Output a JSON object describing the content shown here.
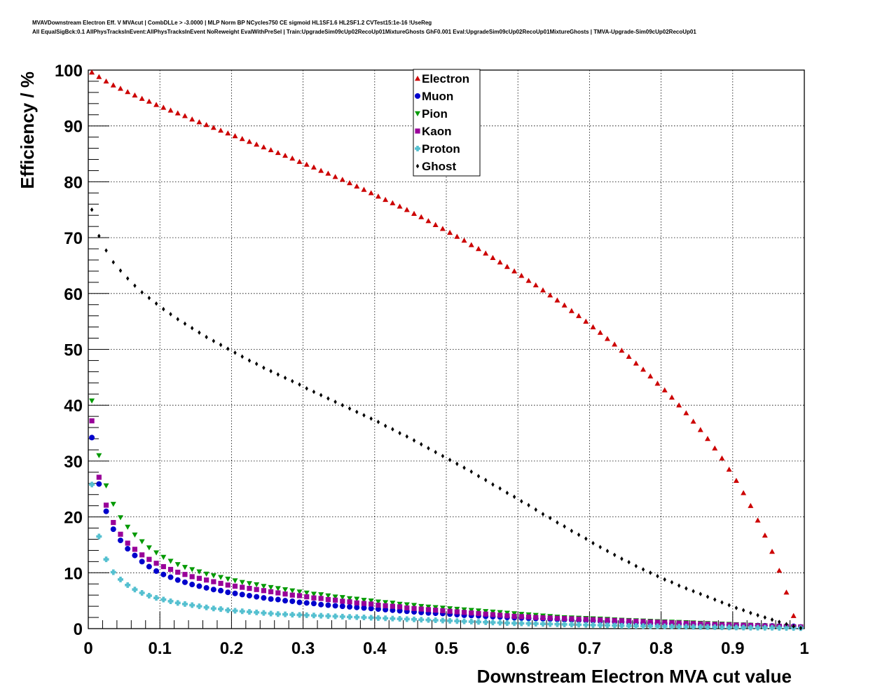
{
  "header": {
    "line1": "MVAVDownstream Electron Eff. V MVAcut | CombDLLe > -3.0000 | MLP Norm BP NCycles750 CE sigmoid HL1SF1.6 HL2SF1.2 CVTest15:1e-16 !UseReg",
    "line2": "All EqualSigBck:0.1 AllPhysTracksInEvent:AllPhysTracksInEvent NoReweight EvalWithPreSel | Train:UpgradeSim09cUp02RecoUp01MixtureGhosts GhF0.001 Eval:UpgradeSim09cUp02RecoUp01MixtureGhosts | TMVA-Upgrade-Sim09cUp02RecoUp01"
  },
  "chart_data": {
    "type": "scatter",
    "xlabel": "Downstream Electron MVA cut value",
    "ylabel": "Efficiency / %",
    "xlim": [
      0,
      1
    ],
    "ylim": [
      0,
      100
    ],
    "xticks": [
      0,
      0.1,
      0.2,
      0.3,
      0.4,
      0.5,
      0.6,
      0.7,
      0.8,
      0.9,
      1
    ],
    "xtick_labels": [
      "0",
      "0.1",
      "0.2",
      "0.3",
      "0.4",
      "0.5",
      "0.6",
      "0.7",
      "0.8",
      "0.9",
      "1"
    ],
    "yticks": [
      0,
      10,
      20,
      30,
      40,
      50,
      60,
      70,
      80,
      90,
      100
    ],
    "ytick_labels": [
      "0",
      "10",
      "20",
      "30",
      "40",
      "50",
      "60",
      "70",
      "80",
      "90",
      "100"
    ],
    "grid": true,
    "legend_position": "top-center",
    "x": [
      0.005,
      0.015,
      0.025,
      0.035,
      0.045,
      0.055,
      0.065,
      0.075,
      0.085,
      0.095,
      0.105,
      0.115,
      0.125,
      0.135,
      0.145,
      0.155,
      0.165,
      0.175,
      0.185,
      0.195,
      0.205,
      0.215,
      0.225,
      0.235,
      0.245,
      0.255,
      0.265,
      0.275,
      0.285,
      0.295,
      0.305,
      0.315,
      0.325,
      0.335,
      0.345,
      0.355,
      0.365,
      0.375,
      0.385,
      0.395,
      0.405,
      0.415,
      0.425,
      0.435,
      0.445,
      0.455,
      0.465,
      0.475,
      0.485,
      0.495,
      0.505,
      0.515,
      0.525,
      0.535,
      0.545,
      0.555,
      0.565,
      0.575,
      0.585,
      0.595,
      0.605,
      0.615,
      0.625,
      0.635,
      0.645,
      0.655,
      0.665,
      0.675,
      0.685,
      0.695,
      0.705,
      0.715,
      0.725,
      0.735,
      0.745,
      0.755,
      0.765,
      0.775,
      0.785,
      0.795,
      0.805,
      0.815,
      0.825,
      0.835,
      0.845,
      0.855,
      0.865,
      0.875,
      0.885,
      0.895,
      0.905,
      0.915,
      0.925,
      0.935,
      0.945,
      0.955,
      0.965,
      0.975,
      0.985,
      0.995
    ],
    "series": [
      {
        "name": "Electron",
        "color": "#cc0000",
        "marker": "triangle-up",
        "values": [
          99.6,
          98.8,
          98.0,
          97.3,
          96.7,
          96.1,
          95.5,
          94.9,
          94.4,
          93.8,
          93.3,
          92.8,
          92.3,
          91.8,
          91.2,
          90.7,
          90.2,
          89.7,
          89.2,
          88.7,
          88.2,
          87.7,
          87.2,
          86.7,
          86.2,
          85.7,
          85.2,
          84.7,
          84.2,
          83.6,
          83.1,
          82.6,
          82.0,
          81.5,
          80.9,
          80.4,
          79.8,
          79.2,
          78.6,
          78.0,
          77.4,
          76.8,
          76.2,
          75.6,
          75.0,
          74.3,
          73.7,
          73.0,
          72.3,
          71.6,
          70.9,
          70.2,
          69.5,
          68.7,
          68.0,
          67.2,
          66.4,
          65.6,
          64.8,
          64.0,
          63.2,
          62.3,
          61.5,
          60.6,
          59.7,
          58.8,
          57.9,
          56.9,
          56.0,
          55.0,
          54.0,
          53.0,
          51.9,
          50.9,
          49.8,
          48.7,
          47.5,
          46.4,
          45.2,
          43.9,
          42.7,
          41.4,
          40.0,
          38.6,
          37.1,
          35.6,
          34.0,
          32.3,
          30.5,
          28.5,
          26.5,
          24.3,
          22.0,
          19.4,
          16.7,
          13.8,
          10.4,
          6.5,
          2.3,
          0.3
        ]
      },
      {
        "name": "Muon",
        "color": "#0000cc",
        "marker": "circle",
        "values": [
          34.2,
          25.9,
          21.0,
          17.8,
          15.8,
          14.3,
          13.1,
          12.0,
          11.1,
          10.3,
          9.7,
          9.2,
          8.7,
          8.3,
          7.9,
          7.6,
          7.3,
          7.0,
          6.8,
          6.5,
          6.3,
          6.1,
          5.9,
          5.7,
          5.5,
          5.3,
          5.2,
          5.0,
          4.9,
          4.7,
          4.6,
          4.5,
          4.3,
          4.2,
          4.1,
          4.0,
          3.9,
          3.8,
          3.7,
          3.6,
          3.5,
          3.4,
          3.3,
          3.2,
          3.1,
          3.0,
          2.9,
          2.8,
          2.75,
          2.7,
          2.6,
          2.5,
          2.4,
          2.35,
          2.3,
          2.2,
          2.15,
          2.1,
          2.0,
          1.95,
          1.9,
          1.85,
          1.8,
          1.75,
          1.7,
          1.65,
          1.6,
          1.55,
          1.5,
          1.45,
          1.4,
          1.35,
          1.3,
          1.25,
          1.2,
          1.15,
          1.1,
          1.05,
          1.0,
          0.97,
          0.94,
          0.91,
          0.88,
          0.85,
          0.82,
          0.79,
          0.76,
          0.73,
          0.7,
          0.67,
          0.64,
          0.61,
          0.58,
          0.55,
          0.52,
          0.49,
          0.46,
          0.43,
          0.4,
          0.3
        ]
      },
      {
        "name": "Pion",
        "color": "#009900",
        "marker": "triangle-down",
        "values": [
          40.8,
          31.0,
          25.6,
          22.3,
          19.9,
          18.2,
          16.8,
          15.6,
          14.5,
          13.6,
          12.8,
          12.1,
          11.5,
          11.0,
          10.6,
          10.2,
          9.8,
          9.5,
          9.2,
          8.9,
          8.6,
          8.3,
          8.1,
          7.9,
          7.6,
          7.4,
          7.2,
          7.0,
          6.8,
          6.6,
          6.4,
          6.2,
          6.1,
          5.9,
          5.7,
          5.6,
          5.4,
          5.3,
          5.1,
          5.0,
          4.8,
          4.7,
          4.6,
          4.4,
          4.3,
          4.2,
          4.0,
          3.9,
          3.8,
          3.7,
          3.6,
          3.5,
          3.4,
          3.3,
          3.2,
          3.1,
          3.0,
          2.9,
          2.8,
          2.7,
          2.6,
          2.5,
          2.4,
          2.3,
          2.2,
          2.1,
          2.0,
          1.95,
          1.9,
          1.85,
          1.8,
          1.75,
          1.7,
          1.6,
          1.55,
          1.5,
          1.45,
          1.4,
          1.35,
          1.3,
          1.25,
          1.2,
          1.15,
          1.1,
          1.05,
          1.0,
          0.95,
          0.9,
          0.85,
          0.8,
          0.75,
          0.7,
          0.65,
          0.6,
          0.55,
          0.5,
          0.45,
          0.4,
          0.35,
          0.3
        ]
      },
      {
        "name": "Kaon",
        "color": "#990099",
        "marker": "square",
        "values": [
          37.2,
          27.1,
          22.1,
          19.0,
          16.9,
          15.3,
          14.2,
          13.2,
          12.4,
          11.7,
          11.1,
          10.6,
          10.1,
          9.7,
          9.3,
          9.0,
          8.7,
          8.4,
          8.1,
          7.8,
          7.6,
          7.4,
          7.2,
          7.0,
          6.8,
          6.6,
          6.4,
          6.2,
          6.0,
          5.9,
          5.7,
          5.5,
          5.4,
          5.2,
          5.1,
          4.9,
          4.8,
          4.6,
          4.5,
          4.4,
          4.2,
          4.1,
          4.0,
          3.9,
          3.7,
          3.6,
          3.5,
          3.4,
          3.3,
          3.2,
          3.1,
          3.0,
          2.9,
          2.8,
          2.7,
          2.6,
          2.5,
          2.4,
          2.3,
          2.2,
          2.15,
          2.1,
          2.0,
          1.95,
          1.9,
          1.85,
          1.8,
          1.75,
          1.7,
          1.65,
          1.6,
          1.55,
          1.5,
          1.45,
          1.4,
          1.35,
          1.3,
          1.25,
          1.2,
          1.15,
          1.1,
          1.05,
          1.0,
          0.95,
          0.9,
          0.85,
          0.8,
          0.76,
          0.72,
          0.68,
          0.64,
          0.6,
          0.56,
          0.52,
          0.48,
          0.44,
          0.4,
          0.36,
          0.32,
          0.3
        ]
      },
      {
        "name": "Proton",
        "color": "#55c0d0",
        "marker": "cross",
        "values": [
          25.8,
          16.5,
          12.4,
          10.1,
          8.8,
          7.8,
          7.0,
          6.4,
          5.9,
          5.5,
          5.2,
          4.9,
          4.6,
          4.4,
          4.2,
          4.0,
          3.8,
          3.6,
          3.5,
          3.3,
          3.2,
          3.1,
          3.0,
          2.9,
          2.8,
          2.7,
          2.6,
          2.55,
          2.5,
          2.45,
          2.4,
          2.35,
          2.3,
          2.25,
          2.2,
          2.15,
          2.1,
          2.05,
          2.0,
          1.95,
          1.9,
          1.85,
          1.8,
          1.75,
          1.7,
          1.65,
          1.6,
          1.55,
          1.5,
          1.45,
          1.4,
          1.35,
          1.3,
          1.25,
          1.2,
          1.15,
          1.1,
          1.05,
          1.0,
          0.97,
          0.94,
          0.91,
          0.88,
          0.85,
          0.82,
          0.79,
          0.76,
          0.73,
          0.7,
          0.67,
          0.64,
          0.61,
          0.58,
          0.55,
          0.52,
          0.5,
          0.48,
          0.46,
          0.44,
          0.42,
          0.4,
          0.38,
          0.36,
          0.34,
          0.32,
          0.3,
          0.28,
          0.26,
          0.24,
          0.22,
          0.2,
          0.19,
          0.18,
          0.17,
          0.16,
          0.15,
          0.14,
          0.13,
          0.12,
          0.1
        ]
      },
      {
        "name": "Ghost",
        "color": "#000000",
        "marker": "diamond",
        "values": [
          75.0,
          70.3,
          67.7,
          65.6,
          64.1,
          62.7,
          61.4,
          60.2,
          59.2,
          58.2,
          57.2,
          56.3,
          55.4,
          54.6,
          53.8,
          53.0,
          52.2,
          51.5,
          50.8,
          50.1,
          49.4,
          48.7,
          48.0,
          47.4,
          46.7,
          46.1,
          45.5,
          44.9,
          44.3,
          43.7,
          43.0,
          42.4,
          41.8,
          41.2,
          40.6,
          40.0,
          39.4,
          38.8,
          38.2,
          37.6,
          37.0,
          36.3,
          35.7,
          35.0,
          34.4,
          33.7,
          33.0,
          32.3,
          31.6,
          30.9,
          30.2,
          29.5,
          28.8,
          28.1,
          27.3,
          26.6,
          25.8,
          25.1,
          24.3,
          23.6,
          22.8,
          22.1,
          21.3,
          20.5,
          19.8,
          19.0,
          18.3,
          17.5,
          16.8,
          16.1,
          15.3,
          14.6,
          13.9,
          13.2,
          12.5,
          11.9,
          11.2,
          10.6,
          10.0,
          9.4,
          8.8,
          8.3,
          7.7,
          7.2,
          6.7,
          6.2,
          5.7,
          5.2,
          4.7,
          4.2,
          3.7,
          3.3,
          2.8,
          2.4,
          2.0,
          1.6,
          1.2,
          0.8,
          0.4,
          0.1
        ]
      }
    ]
  }
}
